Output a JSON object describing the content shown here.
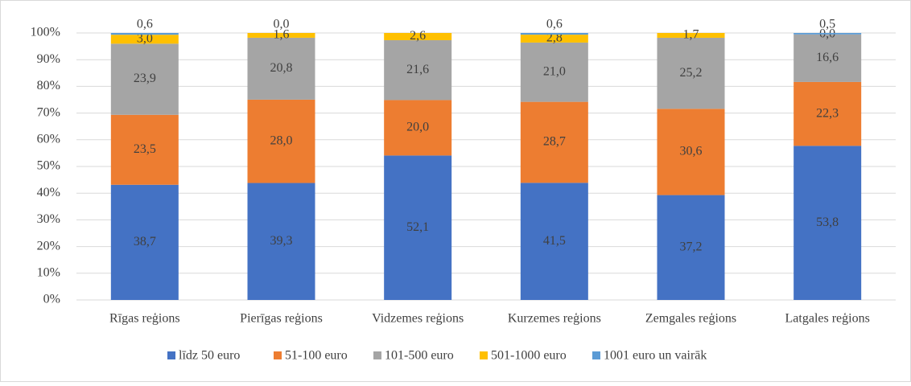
{
  "chart_data": {
    "type": "bar",
    "stack": "percent",
    "categories": [
      "Rīgas reģions",
      "Pierīgas reģions",
      "Vidzemes reģions",
      "Kurzemes reģions",
      "Zemgales reģions",
      "Latgales reģions"
    ],
    "series": [
      {
        "name": "līdz 50 euro",
        "color": "#4472c4",
        "values": [
          38.7,
          39.3,
          52.1,
          41.5,
          37.2,
          53.8
        ],
        "value_labels": [
          "38,7",
          "39,3",
          "52,1",
          "41,5",
          "37,2",
          "53,8"
        ]
      },
      {
        "name": "51-100 euro",
        "color": "#ed7d31",
        "values": [
          23.5,
          28.0,
          20.0,
          28.7,
          30.6,
          22.3
        ],
        "value_labels": [
          "23,5",
          "28,0",
          "20,0",
          "28,7",
          "30,6",
          "22,3"
        ]
      },
      {
        "name": "101-500 euro",
        "color": "#a5a5a5",
        "values": [
          23.9,
          20.8,
          21.6,
          21.0,
          25.2,
          16.6
        ],
        "value_labels": [
          "23,9",
          "20,8",
          "21,6",
          "21,0",
          "25,2",
          "16,6"
        ]
      },
      {
        "name": "501-1000 euro",
        "color": "#ffc000",
        "values": [
          3.0,
          1.6,
          2.6,
          2.8,
          1.7,
          0.0
        ],
        "value_labels": [
          "3,0",
          "1,6",
          "2,6",
          "2,8",
          "1,7",
          "0,0"
        ]
      },
      {
        "name": "1001 euro un vairāk",
        "color": "#5b9bd5",
        "values": [
          0.6,
          0.0,
          0,
          0.6,
          0,
          0.5
        ],
        "value_labels": [
          "0,6",
          "0,0",
          null,
          "0,6",
          null,
          "0,5"
        ]
      }
    ],
    "ylim": [
      0,
      100
    ],
    "yticks": [
      {
        "value": 0,
        "label": "0%"
      },
      {
        "value": 10,
        "label": "10%"
      },
      {
        "value": 20,
        "label": "20%"
      },
      {
        "value": 30,
        "label": "30%"
      },
      {
        "value": 40,
        "label": "40%"
      },
      {
        "value": 50,
        "label": "50%"
      },
      {
        "value": 60,
        "label": "60%"
      },
      {
        "value": 70,
        "label": "70%"
      },
      {
        "value": 80,
        "label": "80%"
      },
      {
        "value": 90,
        "label": "90%"
      },
      {
        "value": 100,
        "label": "100%"
      }
    ],
    "grid": true,
    "legend": "bottom"
  }
}
